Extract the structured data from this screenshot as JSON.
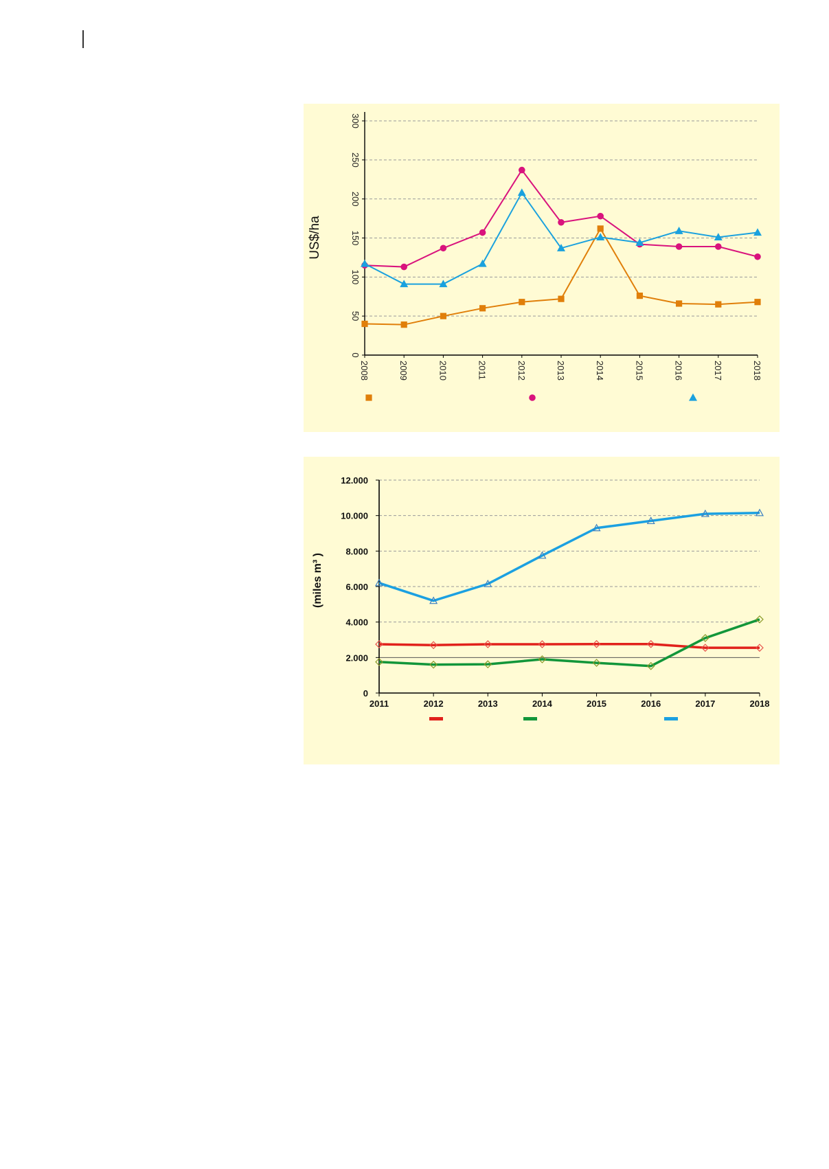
{
  "charts": [
    {
      "ylabel": "US$/ha",
      "chart_data": {
        "type": "line",
        "x": [
          "2008",
          "2009",
          "2010",
          "2011",
          "2012",
          "2013",
          "2014",
          "2015",
          "2016",
          "2017",
          "2018"
        ],
        "ylim": [
          0,
          300
        ],
        "yticks": [
          "0",
          "50",
          "100",
          "150",
          "200",
          "250",
          "300"
        ],
        "ylabel": "US$/ha",
        "xlabel": "",
        "grid": true,
        "rotated": true,
        "legend": "bottom",
        "series": [
          {
            "values": [
              40,
              39,
              50,
              60,
              68,
              72,
              162,
              76,
              66,
              65,
              68
            ],
            "color": "#e07f0a",
            "marker": "square"
          },
          {
            "values": [
              115,
              113,
              137,
              157,
              237,
              170,
              178,
              142,
              139,
              139,
              126
            ],
            "color": "#d9137d",
            "marker": "circle"
          },
          {
            "values": [
              117,
              91,
              91,
              117,
              208,
              137,
              151,
              144,
              159,
              151,
              157
            ],
            "color": "#1aa1de",
            "marker": "triangle"
          }
        ]
      }
    },
    {
      "ylabel": "(miles m³ )",
      "chart_data": {
        "type": "line",
        "x": [
          "2011",
          "2012",
          "2013",
          "2014",
          "2015",
          "2016",
          "2017",
          "2018"
        ],
        "ylim": [
          0,
          12000
        ],
        "yticks": [
          "0",
          "2.000",
          "4.000",
          "6.000",
          "8.000",
          "10.000",
          "12.000"
        ],
        "ylabel": "(miles m³ )",
        "xlabel": "",
        "grid": true,
        "legend": "bottom",
        "series": [
          {
            "values": [
              2750,
              2700,
              2750,
              2750,
              2760,
              2760,
              2550,
              2550
            ],
            "color": "#e1211b",
            "marker": "diamond"
          },
          {
            "values": [
              1750,
              1600,
              1620,
              1900,
              1700,
              1520,
              3100,
              4150
            ],
            "color": "#12963a",
            "marker": "diamond"
          },
          {
            "values": [
              6200,
              5200,
              6150,
              7750,
              9300,
              9700,
              10100,
              10150
            ],
            "color": "#1ba0e1",
            "marker": "triangle"
          }
        ]
      }
    }
  ]
}
